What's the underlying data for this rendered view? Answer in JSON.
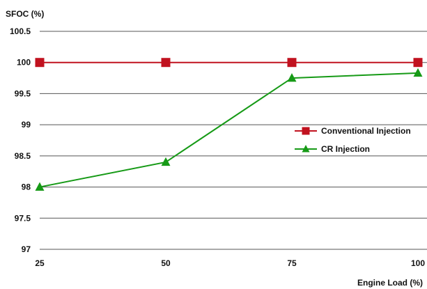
{
  "chart_data": {
    "type": "line",
    "title": "",
    "ylabel": "SFOC (%)",
    "xlabel": "Engine Load (%)",
    "x": [
      25,
      50,
      75,
      100
    ],
    "xticks": [
      "25",
      "50",
      "75",
      "100"
    ],
    "ylim": [
      97,
      100.5
    ],
    "yticks": [
      "97",
      "97.5",
      "98",
      "98.5",
      "99",
      "99.5",
      "100",
      "100.5"
    ],
    "grid": true,
    "legend_position": "right",
    "series": [
      {
        "name": "Conventional Injection",
        "color": "#c1121f",
        "marker": "square",
        "values": [
          100,
          100,
          100,
          100
        ]
      },
      {
        "name": "CR Injection",
        "color": "#169a16",
        "marker": "triangle",
        "values": [
          98.0,
          98.4,
          99.75,
          99.83
        ]
      }
    ]
  }
}
